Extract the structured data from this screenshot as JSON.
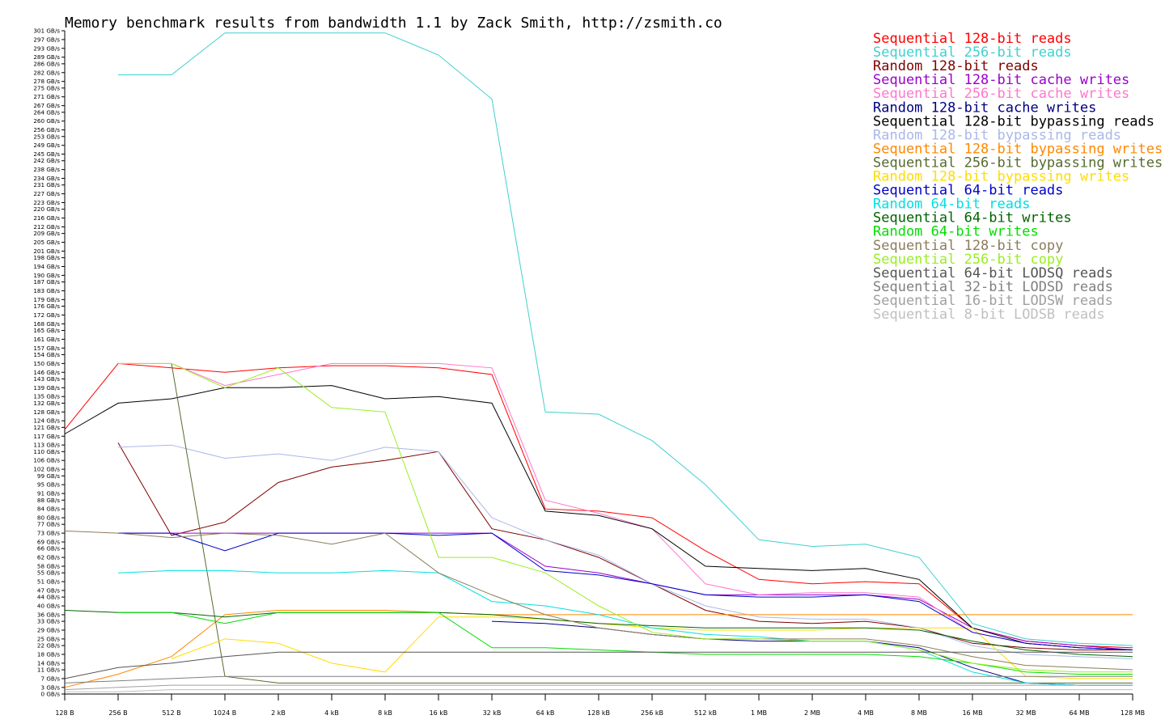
{
  "chart_data": {
    "type": "line",
    "title": "Memory benchmark results from bandwidth 1.1 by Zack Smith, http://zsmith.co",
    "xlabel": "",
    "ylabel": "",
    "ylim": [
      0,
      301
    ],
    "grid": false,
    "legend_position": "top-right",
    "x": [
      "128 B",
      "256 B",
      "512 B",
      "1024 B",
      "2 kB",
      "4 kB",
      "8 kB",
      "16 kB",
      "32 kB",
      "64 kB",
      "128 kB",
      "256 kB",
      "512 kB",
      "1 MB",
      "2 MB",
      "4 MB",
      "8 MB",
      "16 MB",
      "32 MB",
      "64 MB",
      "128 MB"
    ],
    "yticks": [
      "0 GB/s",
      "3 GB/s",
      "7 GB/s",
      "11 GB/s",
      "14 GB/s",
      "18 GB/s",
      "22 GB/s",
      "25 GB/s",
      "29 GB/s",
      "33 GB/s",
      "36 GB/s",
      "40 GB/s",
      "44 GB/s",
      "47 GB/s",
      "51 GB/s",
      "55 GB/s",
      "58 GB/s",
      "62 GB/s",
      "66 GB/s",
      "69 GB/s",
      "73 GB/s",
      "77 GB/s",
      "80 GB/s",
      "84 GB/s",
      "88 GB/s",
      "91 GB/s",
      "95 GB/s",
      "99 GB/s",
      "102 GB/s",
      "106 GB/s",
      "110 GB/s",
      "113 GB/s",
      "117 GB/s",
      "121 GB/s",
      "124 GB/s",
      "128 GB/s",
      "132 GB/s",
      "135 GB/s",
      "139 GB/s",
      "143 GB/s",
      "146 GB/s",
      "150 GB/s",
      "154 GB/s",
      "157 GB/s",
      "161 GB/s",
      "165 GB/s",
      "168 GB/s",
      "172 GB/s",
      "176 GB/s",
      "179 GB/s",
      "183 GB/s",
      "187 GB/s",
      "190 GB/s",
      "194 GB/s",
      "198 GB/s",
      "201 GB/s",
      "205 GB/s",
      "209 GB/s",
      "212 GB/s",
      "216 GB/s",
      "220 GB/s",
      "223 GB/s",
      "227 GB/s",
      "231 GB/s",
      "234 GB/s",
      "238 GB/s",
      "242 GB/s",
      "245 GB/s",
      "249 GB/s",
      "253 GB/s",
      "256 GB/s",
      "260 GB/s",
      "264 GB/s",
      "267 GB/s",
      "271 GB/s",
      "275 GB/s",
      "278 GB/s",
      "282 GB/s",
      "286 GB/s",
      "289 GB/s",
      "293 GB/s",
      "297 GB/s",
      "301 GB/s"
    ],
    "series": [
      {
        "name": "Sequential 128-bit reads",
        "color": "#ff0000",
        "values": [
          120,
          150,
          148,
          146,
          148,
          149,
          149,
          148,
          145,
          84,
          83,
          80,
          65,
          52,
          50,
          51,
          50,
          30,
          24,
          22,
          21
        ]
      },
      {
        "name": "Sequential 256-bit reads",
        "color": "#40d0d0",
        "values": [
          0,
          281,
          281,
          300,
          300,
          300,
          300,
          290,
          270,
          128,
          127,
          115,
          95,
          70,
          67,
          68,
          62,
          32,
          25,
          23,
          22
        ]
      },
      {
        "name": "Random 128-bit reads",
        "color": "#800000",
        "values": [
          0,
          114,
          72,
          78,
          96,
          103,
          106,
          110,
          75,
          70,
          62,
          50,
          38,
          33,
          32,
          33,
          30,
          23,
          21,
          20,
          20
        ]
      },
      {
        "name": "Sequential 128-bit cache writes",
        "color": "#9900cc",
        "values": [
          0,
          73,
          73,
          73,
          73,
          73,
          73,
          73,
          73,
          58,
          55,
          50,
          45,
          45,
          45,
          45,
          43,
          30,
          24,
          22,
          20
        ]
      },
      {
        "name": "Sequential 256-bit cache writes",
        "color": "#ff77cc",
        "values": [
          0,
          150,
          150,
          140,
          145,
          150,
          150,
          150,
          148,
          88,
          82,
          75,
          50,
          45,
          46,
          46,
          44,
          28,
          23,
          21,
          20
        ]
      },
      {
        "name": "Random 128-bit cache writes",
        "color": "#000080",
        "values": [
          0,
          0,
          0,
          0,
          0,
          0,
          0,
          0,
          33,
          32,
          30,
          27,
          25,
          24,
          24,
          24,
          21,
          12,
          5,
          4,
          4
        ]
      },
      {
        "name": "Sequential 128-bit bypassing reads",
        "color": "#000000",
        "values": [
          118,
          132,
          134,
          139,
          139,
          140,
          134,
          135,
          132,
          83,
          81,
          75,
          58,
          57,
          56,
          57,
          52,
          30,
          23,
          21,
          20
        ]
      },
      {
        "name": "Random 128-bit bypassing reads",
        "color": "#aab8e8",
        "values": [
          0,
          112,
          113,
          107,
          109,
          106,
          112,
          110,
          80,
          70,
          63,
          50,
          40,
          35,
          34,
          34,
          30,
          22,
          18,
          17,
          16
        ]
      },
      {
        "name": "Sequential 128-bit bypassing writes",
        "color": "#ff8800",
        "values": [
          3,
          9,
          17,
          36,
          38,
          38,
          38,
          37,
          36,
          36,
          36,
          36,
          36,
          36,
          36,
          36,
          36,
          36,
          36,
          36,
          36
        ]
      },
      {
        "name": "Sequential 256-bit bypassing writes",
        "color": "#556b2f",
        "values": [
          0,
          0,
          150,
          8,
          5,
          5,
          5,
          5,
          5,
          5,
          5,
          5,
          5,
          5,
          5,
          5,
          5,
          5,
          5,
          5,
          5
        ]
      },
      {
        "name": "Random 128-bit bypassing writes",
        "color": "#ffdd00",
        "values": [
          0,
          0,
          16,
          25,
          23,
          14,
          10,
          35,
          35,
          34,
          32,
          30,
          29,
          29,
          29,
          30,
          30,
          30,
          8,
          7,
          7
        ]
      },
      {
        "name": "Sequential 64-bit reads",
        "color": "#0000cc",
        "values": [
          0,
          73,
          73,
          65,
          73,
          73,
          73,
          72,
          73,
          56,
          54,
          50,
          45,
          44,
          44,
          45,
          42,
          28,
          23,
          21,
          20
        ]
      },
      {
        "name": "Random 64-bit reads",
        "color": "#00e0e0",
        "values": [
          0,
          55,
          56,
          56,
          55,
          55,
          56,
          55,
          42,
          40,
          36,
          30,
          27,
          26,
          24,
          24,
          20,
          10,
          5,
          4,
          4
        ]
      },
      {
        "name": "Sequential 64-bit writes",
        "color": "#006400",
        "values": [
          38,
          37,
          37,
          35,
          37,
          37,
          37,
          37,
          36,
          34,
          32,
          31,
          30,
          30,
          30,
          30,
          29,
          24,
          20,
          18,
          17
        ]
      },
      {
        "name": "Random 64-bit writes",
        "color": "#00dd00",
        "values": [
          0,
          37,
          37,
          32,
          37,
          37,
          37,
          37,
          21,
          21,
          20,
          19,
          18,
          18,
          18,
          18,
          17,
          14,
          10,
          9,
          9
        ]
      },
      {
        "name": "Sequential 128-bit copy",
        "color": "#8b7d5b",
        "values": [
          74,
          73,
          71,
          73,
          72,
          68,
          73,
          55,
          45,
          36,
          30,
          27,
          25,
          25,
          25,
          25,
          22,
          17,
          13,
          12,
          11
        ]
      },
      {
        "name": "Sequential 256-bit copy",
        "color": "#99ee22",
        "values": [
          0,
          150,
          150,
          139,
          148,
          130,
          128,
          62,
          62,
          55,
          40,
          28,
          25,
          25,
          24,
          24,
          20,
          14,
          11,
          10,
          10
        ]
      },
      {
        "name": "Sequential 64-bit LODSQ reads",
        "color": "#555555",
        "values": [
          7,
          12,
          14,
          17,
          19,
          19,
          19,
          19,
          19,
          19,
          19,
          19,
          19,
          19,
          19,
          19,
          19,
          19,
          19,
          19,
          19
        ]
      },
      {
        "name": "Sequential 32-bit LODSD reads",
        "color": "#808080",
        "values": [
          5,
          6,
          7,
          8,
          8,
          8,
          8,
          8,
          8,
          8,
          8,
          8,
          8,
          8,
          8,
          8,
          8,
          8,
          8,
          8,
          8
        ]
      },
      {
        "name": "Sequential 16-bit LODSW reads",
        "color": "#a0a0a0",
        "values": [
          2,
          3,
          4,
          4,
          4,
          4,
          4,
          4,
          4,
          4,
          4,
          4,
          4,
          4,
          4,
          4,
          4,
          4,
          4,
          4,
          4
        ]
      },
      {
        "name": "Sequential 8-bit LODSB reads",
        "color": "#c0c0c0",
        "values": [
          1,
          1,
          2,
          2,
          2,
          2,
          2,
          2,
          2,
          2,
          2,
          2,
          2,
          2,
          2,
          2,
          2,
          2,
          2,
          2,
          2
        ]
      }
    ]
  }
}
